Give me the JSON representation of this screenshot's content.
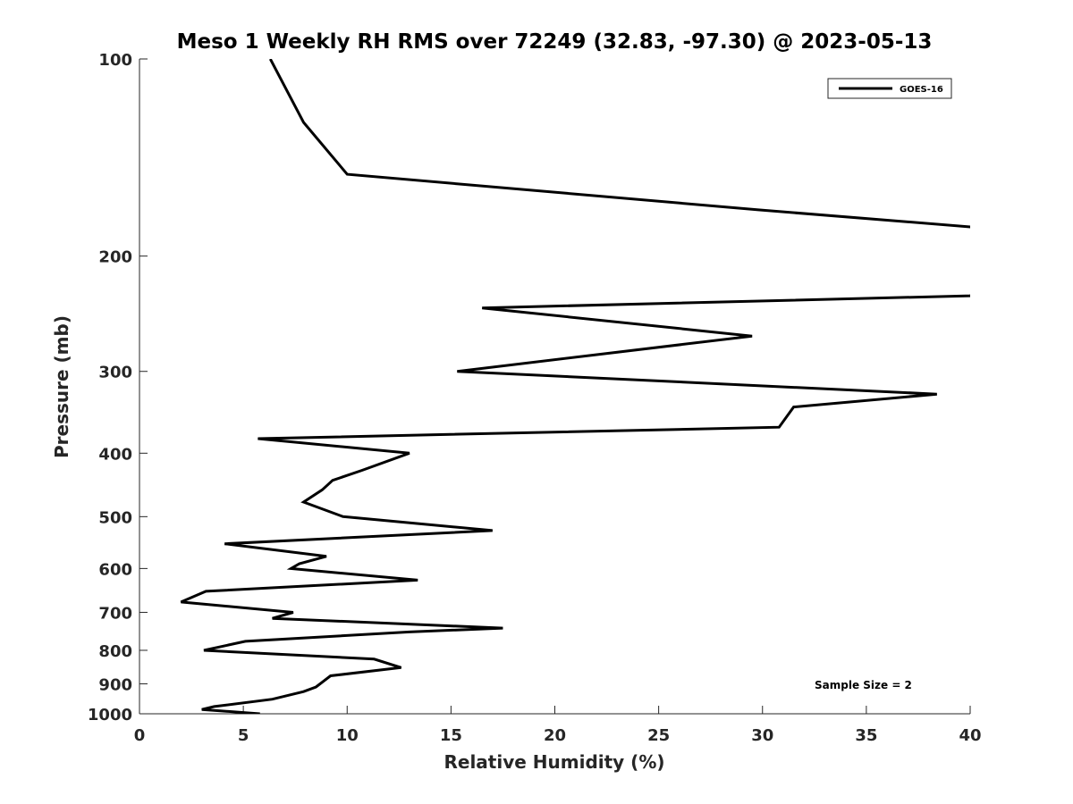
{
  "chart_data": {
    "type": "line",
    "title": "Meso 1 Weekly RH RMS over 72249 (32.83, -97.30) @ 2023-05-13",
    "xlabel": "Relative Humidity (%)",
    "ylabel": "Pressure (mb)",
    "xlim": [
      0,
      40
    ],
    "ylim": [
      100,
      1000
    ],
    "y_scale": "log",
    "y_reversed": true,
    "xticks": [
      0,
      5,
      10,
      15,
      20,
      25,
      30,
      35,
      40
    ],
    "yticks": [
      100,
      200,
      300,
      400,
      500,
      600,
      700,
      800,
      900,
      1000
    ],
    "grid": false,
    "legend_position": "top-right",
    "series": [
      {
        "name": "GOES-16",
        "color": "#000000",
        "points": [
          [
            6.3,
            100
          ],
          [
            7.9,
            125
          ],
          [
            10.0,
            150
          ],
          [
            29.8,
            170
          ],
          [
            40.5,
            181
          ],
          [
            40.5,
            225
          ],
          [
            40.0,
            230
          ],
          [
            16.5,
            240
          ],
          [
            29.5,
            265
          ],
          [
            15.3,
            300
          ],
          [
            38.4,
            325
          ],
          [
            31.5,
            340
          ],
          [
            30.8,
            365
          ],
          [
            5.7,
            380
          ],
          [
            13.0,
            400
          ],
          [
            10.7,
            425
          ],
          [
            9.3,
            440
          ],
          [
            8.8,
            455
          ],
          [
            7.9,
            475
          ],
          [
            9.8,
            500
          ],
          [
            17.0,
            525
          ],
          [
            4.1,
            550
          ],
          [
            9.0,
            575
          ],
          [
            7.7,
            590
          ],
          [
            7.3,
            600
          ],
          [
            13.4,
            625
          ],
          [
            3.2,
            650
          ],
          [
            2.0,
            675
          ],
          [
            7.4,
            700
          ],
          [
            6.4,
            715
          ],
          [
            17.5,
            740
          ],
          [
            13.0,
            750
          ],
          [
            5.1,
            775
          ],
          [
            3.1,
            800
          ],
          [
            11.3,
            825
          ],
          [
            12.6,
            850
          ],
          [
            9.2,
            875
          ],
          [
            8.5,
            910
          ],
          [
            7.9,
            925
          ],
          [
            6.4,
            950
          ],
          [
            3.6,
            975
          ],
          [
            3.0,
            985
          ],
          [
            5.8,
            1000
          ]
        ]
      }
    ],
    "annotations": [
      "Sample Size = 2"
    ]
  }
}
